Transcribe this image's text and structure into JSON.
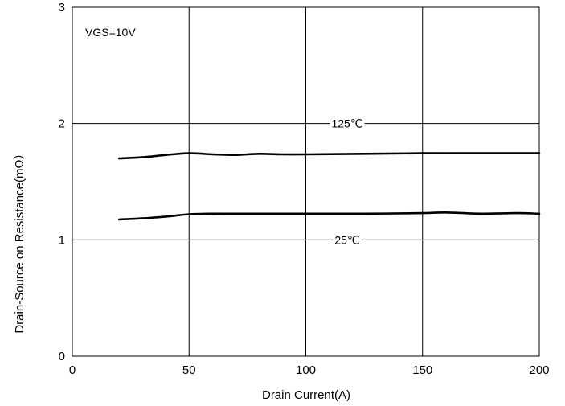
{
  "chart_data": {
    "type": "line",
    "title": "",
    "xlabel": "Drain Current(A)",
    "ylabel": "Drain-Source on Resistance(mΩ）",
    "xlim": [
      0,
      200
    ],
    "ylim": [
      0,
      3
    ],
    "xticks": [
      0,
      50,
      100,
      150,
      200
    ],
    "yticks": [
      0,
      1,
      2,
      3
    ],
    "grid": true,
    "annotations": [
      {
        "text": "VGS=10V"
      }
    ],
    "series": [
      {
        "name": "125℃",
        "x": [
          20,
          30,
          40,
          50,
          60,
          70,
          80,
          90,
          100,
          125,
          150,
          175,
          200
        ],
        "y": [
          1.7,
          1.71,
          1.73,
          1.745,
          1.735,
          1.73,
          1.74,
          1.735,
          1.735,
          1.74,
          1.745,
          1.745,
          1.745
        ]
      },
      {
        "name": "25℃",
        "x": [
          20,
          30,
          40,
          50,
          60,
          70,
          80,
          90,
          100,
          125,
          150,
          160,
          175,
          190,
          200
        ],
        "y": [
          1.175,
          1.185,
          1.2,
          1.22,
          1.225,
          1.225,
          1.225,
          1.225,
          1.225,
          1.225,
          1.23,
          1.235,
          1.225,
          1.23,
          1.225
        ]
      }
    ]
  }
}
